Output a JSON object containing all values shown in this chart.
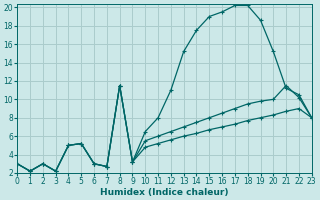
{
  "xlabel": "Humidex (Indice chaleur)",
  "bg_color": "#cce8e8",
  "grid_color": "#aacccc",
  "line_color": "#006666",
  "xlim": [
    0,
    23
  ],
  "ylim": [
    2,
    20.4
  ],
  "xticks": [
    0,
    1,
    2,
    3,
    4,
    5,
    6,
    7,
    8,
    9,
    10,
    11,
    12,
    13,
    14,
    15,
    16,
    17,
    18,
    19,
    20,
    21,
    22,
    23
  ],
  "yticks": [
    2,
    4,
    6,
    8,
    10,
    12,
    14,
    16,
    18,
    20
  ],
  "curve_main_x": [
    0,
    1,
    2,
    3,
    4,
    5,
    6,
    7,
    8,
    9,
    10,
    11,
    12,
    13,
    14,
    15,
    16,
    17,
    18,
    19,
    20,
    21,
    22,
    23
  ],
  "curve_main_y": [
    3.0,
    2.2,
    3.0,
    2.2,
    5.0,
    5.2,
    3.0,
    2.7,
    11.5,
    3.2,
    6.5,
    8.0,
    11.0,
    15.2,
    17.5,
    19.0,
    19.5,
    20.2,
    20.2,
    18.6,
    15.2,
    11.2,
    10.5,
    8.0
  ],
  "curve_high_x": [
    0,
    1,
    2,
    3,
    4,
    5,
    6,
    7,
    8,
    9,
    10,
    11,
    12,
    13,
    14,
    15,
    16,
    17,
    18,
    19,
    20,
    21,
    22,
    23
  ],
  "curve_high_y": [
    3.0,
    2.2,
    3.0,
    2.2,
    5.0,
    5.2,
    3.0,
    2.7,
    11.5,
    3.2,
    5.5,
    6.0,
    6.5,
    7.0,
    7.5,
    8.0,
    8.5,
    9.0,
    9.5,
    9.8,
    10.0,
    11.5,
    10.2,
    8.0
  ],
  "curve_low_x": [
    0,
    1,
    2,
    3,
    4,
    5,
    6,
    7,
    8,
    9,
    10,
    11,
    12,
    13,
    14,
    15,
    16,
    17,
    18,
    19,
    20,
    21,
    22,
    23
  ],
  "curve_low_y": [
    3.0,
    2.2,
    3.0,
    2.2,
    5.0,
    5.2,
    3.0,
    2.7,
    11.5,
    3.2,
    4.8,
    5.2,
    5.6,
    6.0,
    6.3,
    6.7,
    7.0,
    7.3,
    7.7,
    8.0,
    8.3,
    8.7,
    9.0,
    8.0
  ]
}
